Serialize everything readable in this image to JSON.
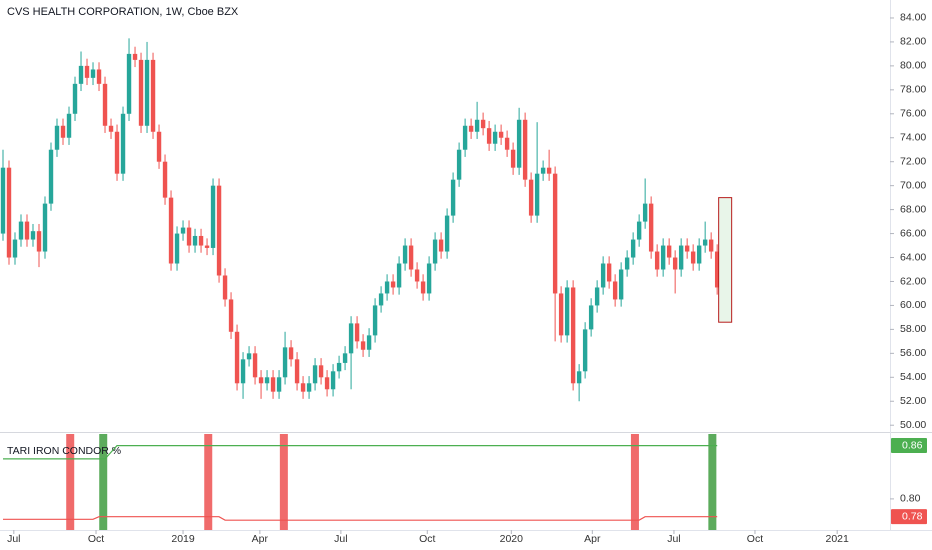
{
  "chart_data": [
    {
      "type": "candlestick",
      "title": "CVS HEALTH CORPORATION, 1W, Cboe BZX",
      "up_color": "#26a69a",
      "down_color": "#ef5350",
      "open": [
        66.0,
        71.5,
        64.0,
        65.5,
        67.0,
        65.5,
        66.2,
        64.5,
        68.5,
        73.0,
        75.0,
        74.0,
        76.0,
        78.5,
        80.0,
        79.0,
        79.7,
        78.5,
        75.0,
        74.5,
        71.0,
        76.0,
        81.0,
        80.5,
        75.0,
        80.5,
        74.5,
        72.0,
        69.0,
        63.5,
        66.0,
        66.5,
        65.0,
        65.8,
        65.0,
        64.8,
        70.0,
        62.5,
        60.5,
        57.8,
        53.5,
        55.5,
        56.0,
        54.0,
        53.5,
        54.0,
        52.8,
        54.0,
        56.5,
        55.5,
        53.5,
        52.8,
        53.5,
        55.0,
        54.0,
        53.0,
        54.5,
        55.2,
        56.0,
        58.5,
        57.0,
        56.3,
        57.5,
        60.0,
        61.0,
        62.0,
        61.5,
        63.5,
        65.0,
        63.0,
        62.0,
        61.0,
        63.5,
        65.5,
        64.5,
        67.5,
        70.5,
        73.0,
        75.0,
        74.5,
        75.5,
        74.8,
        73.5,
        74.5,
        74.0,
        73.0,
        71.5,
        75.5,
        70.5,
        67.5,
        71.0,
        71.5,
        71.0,
        61.0,
        57.5,
        61.5,
        53.5,
        54.5,
        58.0,
        60.0,
        61.5,
        63.5,
        62.0,
        60.5,
        63.0,
        64.0,
        65.5,
        67.0,
        68.5,
        64.5,
        63.0,
        65.0,
        64.0,
        63.0,
        65.0,
        64.5,
        63.5,
        65.0,
        65.5,
        64.5
      ],
      "high": [
        73.0,
        72.1,
        66.1,
        67.6,
        67.6,
        66.8,
        66.8,
        69.1,
        73.6,
        75.6,
        75.6,
        76.6,
        79.1,
        81.2,
        80.6,
        80.3,
        80.3,
        79.1,
        75.6,
        75.1,
        76.6,
        82.3,
        81.6,
        81.1,
        82.0,
        81.1,
        75.1,
        72.6,
        69.6,
        66.6,
        67.1,
        67.1,
        66.4,
        66.4,
        65.6,
        70.6,
        70.6,
        63.1,
        61.1,
        58.4,
        56.1,
        56.6,
        56.6,
        54.6,
        54.6,
        54.6,
        54.6,
        57.8,
        57.1,
        56.1,
        54.1,
        54.1,
        55.6,
        55.6,
        54.6,
        55.1,
        55.8,
        56.6,
        59.1,
        59.1,
        57.6,
        58.1,
        60.6,
        61.6,
        62.6,
        62.6,
        64.1,
        65.6,
        65.6,
        63.6,
        62.6,
        64.1,
        66.1,
        66.1,
        68.1,
        71.1,
        73.6,
        75.6,
        75.6,
        77.0,
        76.1,
        75.4,
        75.1,
        75.1,
        74.6,
        73.6,
        76.5,
        76.1,
        71.1,
        75.3,
        72.1,
        73.0,
        71.6,
        61.6,
        62.1,
        62.1,
        55.1,
        58.6,
        60.6,
        62.1,
        64.1,
        64.1,
        62.6,
        63.6,
        64.6,
        66.1,
        67.6,
        70.6,
        69.1,
        65.1,
        65.6,
        65.6,
        64.6,
        65.6,
        65.6,
        65.1,
        65.6,
        67.0,
        66.1,
        65.1
      ],
      "low": [
        65.4,
        63.4,
        63.4,
        64.9,
        64.9,
        64.9,
        63.2,
        63.9,
        67.9,
        72.4,
        73.4,
        73.4,
        75.4,
        77.9,
        78.4,
        78.4,
        77.9,
        74.4,
        73.9,
        70.4,
        70.4,
        75.4,
        79.9,
        74.4,
        74.4,
        73.9,
        71.4,
        68.4,
        62.9,
        62.9,
        65.4,
        64.4,
        64.4,
        64.4,
        64.2,
        64.2,
        61.9,
        59.9,
        57.2,
        52.9,
        52.2,
        54.9,
        53.4,
        52.2,
        52.9,
        52.2,
        52.2,
        53.4,
        54.9,
        52.9,
        52.2,
        52.2,
        52.9,
        53.4,
        52.4,
        52.4,
        53.9,
        54.6,
        53.0,
        56.4,
        55.7,
        55.7,
        56.9,
        59.4,
        60.4,
        60.9,
        60.9,
        62.9,
        62.4,
        61.4,
        60.4,
        60.4,
        62.9,
        63.9,
        63.9,
        66.9,
        69.9,
        72.4,
        73.9,
        73.9,
        74.2,
        72.9,
        72.9,
        73.4,
        72.4,
        70.9,
        70.9,
        69.9,
        66.9,
        66.9,
        70.4,
        70.4,
        57.0,
        56.9,
        56.9,
        52.9,
        52.0,
        53.9,
        57.4,
        59.4,
        60.9,
        61.4,
        59.9,
        59.9,
        62.4,
        63.4,
        64.9,
        66.4,
        63.9,
        62.4,
        62.4,
        63.4,
        61.0,
        62.4,
        63.9,
        62.9,
        62.9,
        64.4,
        63.9,
        60.9
      ],
      "close": [
        71.5,
        64.0,
        65.5,
        67.0,
        65.5,
        66.2,
        64.5,
        68.5,
        73.0,
        75.0,
        74.0,
        76.0,
        78.5,
        80.0,
        79.0,
        79.7,
        78.5,
        75.0,
        74.5,
        71.0,
        76.0,
        81.0,
        80.5,
        75.0,
        80.5,
        74.5,
        72.0,
        69.0,
        63.5,
        66.0,
        66.5,
        65.0,
        65.8,
        65.0,
        64.8,
        70.0,
        62.5,
        60.5,
        57.8,
        53.5,
        55.5,
        56.0,
        54.0,
        53.5,
        54.0,
        52.8,
        54.0,
        56.5,
        55.5,
        53.5,
        52.8,
        53.5,
        55.0,
        54.0,
        53.0,
        54.5,
        55.2,
        56.0,
        58.5,
        57.0,
        56.3,
        57.5,
        60.0,
        61.0,
        62.0,
        61.5,
        63.5,
        65.0,
        63.0,
        62.0,
        61.0,
        63.5,
        65.5,
        64.5,
        67.5,
        70.5,
        73.0,
        75.0,
        74.5,
        75.5,
        74.8,
        73.5,
        74.5,
        74.0,
        73.0,
        71.5,
        75.5,
        70.5,
        67.5,
        71.0,
        71.5,
        71.0,
        61.0,
        57.5,
        61.5,
        53.5,
        54.5,
        58.0,
        60.0,
        61.5,
        63.5,
        62.0,
        60.5,
        63.0,
        64.0,
        65.5,
        67.0,
        68.5,
        64.5,
        63.0,
        65.0,
        64.0,
        63.0,
        65.0,
        64.5,
        63.5,
        65.0,
        65.5,
        64.5,
        61.5
      ],
      "range_box": {
        "high": 69.0,
        "low": 58.6,
        "color": "#e8f5e9",
        "border": "#b71c1c"
      },
      "xlim": [
        -0.5,
        147.8
      ],
      "xticks": [
        {
          "value": 1.8,
          "label": "Jul"
        },
        {
          "value": 15.5,
          "label": "Oct"
        },
        {
          "value": 30,
          "label": "2019"
        },
        {
          "value": 42.8,
          "label": "Apr"
        },
        {
          "value": 56.3,
          "label": "Jul"
        },
        {
          "value": 70.7,
          "label": "Oct"
        },
        {
          "value": 84.7,
          "label": "2020"
        },
        {
          "value": 98.2,
          "label": "Apr"
        },
        {
          "value": 111.8,
          "label": "Jul"
        },
        {
          "value": 125.3,
          "label": "Oct"
        },
        {
          "value": 139,
          "label": "2021"
        }
      ],
      "ylim": [
        49.6,
        85.5
      ],
      "yticks": [
        {
          "value": 50,
          "label": "50.00"
        },
        {
          "value": 52,
          "label": "52.00"
        },
        {
          "value": 54,
          "label": "54.00"
        },
        {
          "value": 56,
          "label": "56.00"
        },
        {
          "value": 58,
          "label": "58.00"
        },
        {
          "value": 60,
          "label": "60.00"
        },
        {
          "value": 62,
          "label": "62.00"
        },
        {
          "value": 64,
          "label": "64.00"
        },
        {
          "value": 66,
          "label": "66.00"
        },
        {
          "value": 68,
          "label": "68.00"
        },
        {
          "value": 70,
          "label": "70.00"
        },
        {
          "value": 72,
          "label": "72.00"
        },
        {
          "value": 74,
          "label": "74.00"
        },
        {
          "value": 76,
          "label": "76.00"
        },
        {
          "value": 78,
          "label": "78.00"
        },
        {
          "value": 80,
          "label": "80.00"
        },
        {
          "value": 82,
          "label": "82.00"
        },
        {
          "value": 84,
          "label": "84.00"
        }
      ]
    },
    {
      "type": "line",
      "title": "TARI IRON CONDOR %",
      "series": [
        {
          "color": "#4caf50",
          "x": [
            0,
            17,
            19,
            119
          ],
          "values": [
            0.845,
            0.845,
            0.86,
            0.86
          ]
        },
        {
          "color": "#ef5350",
          "x": [
            0,
            15,
            16,
            36,
            37,
            106,
            107,
            119
          ],
          "values": [
            0.777,
            0.777,
            0.78,
            0.78,
            0.776,
            0.776,
            0.78,
            0.78
          ]
        }
      ],
      "signals": {
        "x": [
          11.2,
          16.7,
          34.2,
          46.8,
          105.3,
          118.2
        ],
        "colors": [
          "#f06b6b",
          "#5cab5c",
          "#f06b6b",
          "#f06b6b",
          "#f06b6b",
          "#5cab5c"
        ]
      },
      "ylim": [
        0.765,
        0.873
      ],
      "yticks": [
        {
          "value": 0.8,
          "label": "0.80"
        }
      ]
    }
  ]
}
